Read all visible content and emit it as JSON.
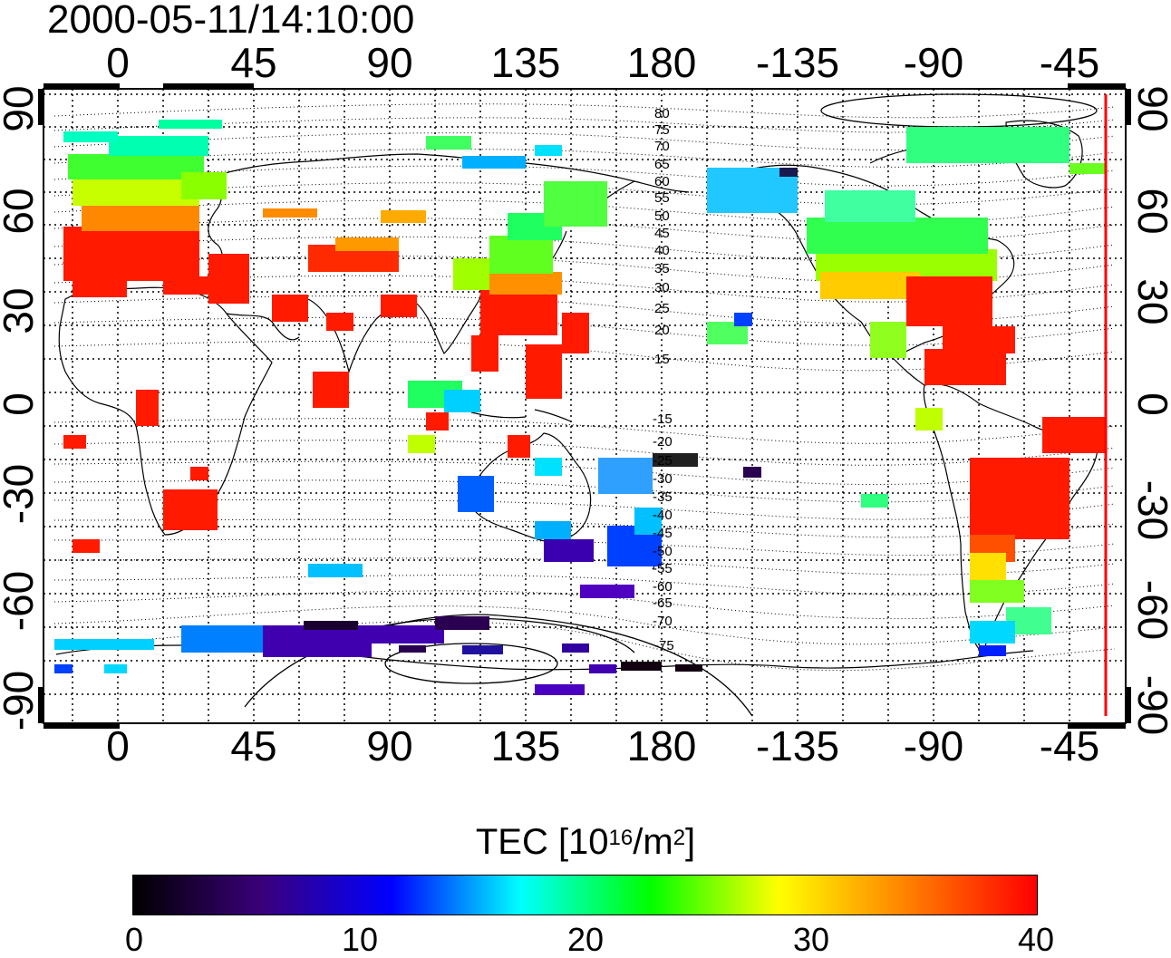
{
  "timestamp": "2000-05-11/14:10:00",
  "top_axis_ticks": [
    "0",
    "45",
    "90",
    "135",
    "180",
    "-135",
    "-90",
    "-45"
  ],
  "bottom_axis_ticks": [
    "0",
    "45",
    "90",
    "135",
    "180",
    "-135",
    "-90",
    "-45"
  ],
  "left_axis_ticks": [
    "90",
    "60",
    "30",
    "0",
    "-30",
    "-60",
    "-90"
  ],
  "right_axis_ticks": [
    "90",
    "60",
    "30",
    "0",
    "-30",
    "-60",
    "-90"
  ],
  "contour_labels_north": [
    "80",
    "75",
    "70",
    "65",
    "60",
    "55",
    "50",
    "45",
    "40",
    "35",
    "30",
    "25",
    "20",
    "15"
  ],
  "contour_labels_south": [
    "-15",
    "-20",
    "-25",
    "-30",
    "-35",
    "-40",
    "-45",
    "-50",
    "-55",
    "-60",
    "-65",
    "-70",
    "-75"
  ],
  "colorbar": {
    "title_prefix": "TEC  [10",
    "title_sup1": "16",
    "title_mid": "/m",
    "title_sup2": "2",
    "title_suffix": "]",
    "ticks": [
      "0",
      "10",
      "20",
      "30",
      "40"
    ],
    "colors": [
      "#000000",
      "#3a007a",
      "#0000ff",
      "#00ffff",
      "#00ff00",
      "#ffff00",
      "#ff8000",
      "#ff0000"
    ]
  },
  "colors": {
    "terminator": "#ff0000"
  }
}
